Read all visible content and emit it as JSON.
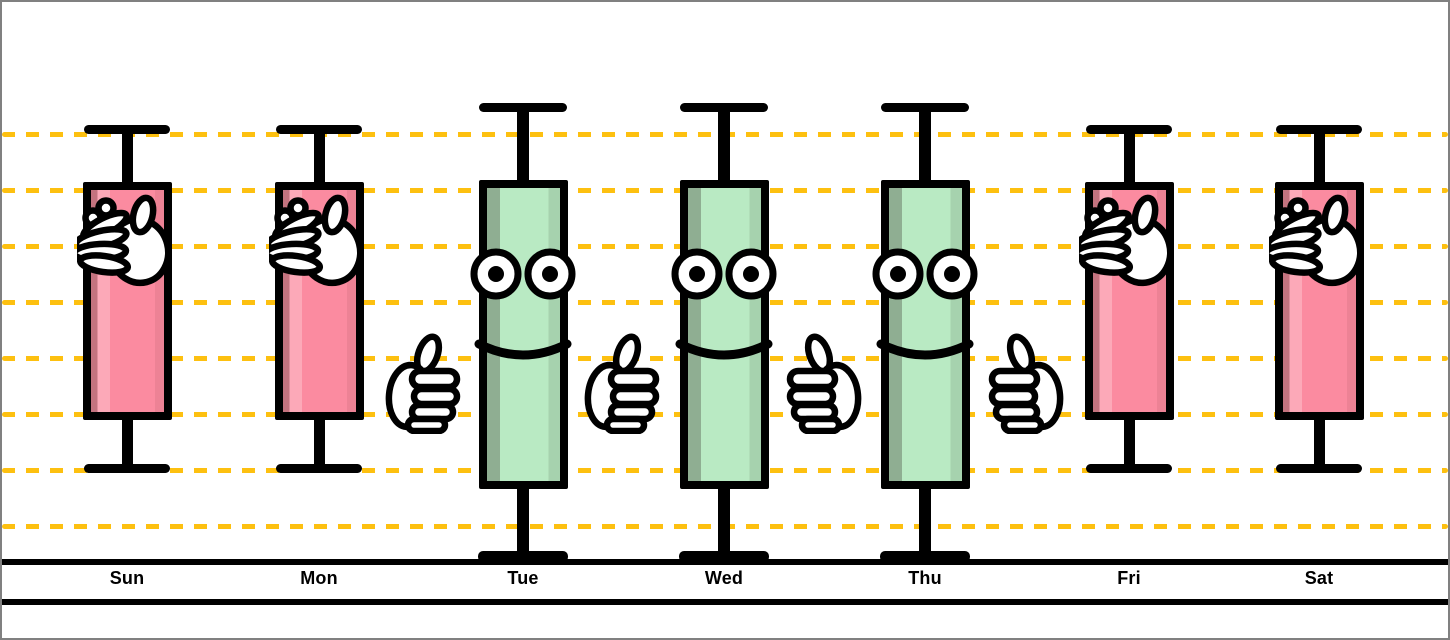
{
  "chart": {
    "colors": {
      "background": "#ffffff",
      "frame_border": "#808080",
      "gridline": "#FDC010",
      "outline": "#000000",
      "hand_fill": "#ffffff",
      "bearish": {
        "main": "#FB8BA0",
        "highlight": "#FCA9B8",
        "shadow_left": "#C4737F",
        "shadow_right": "#ED8295"
      },
      "bullish": {
        "main": "#B9EAC3",
        "highlight": "#C9F2D2",
        "shadow_left": "#8FAE92",
        "shadow_right": "#A6D2AE"
      }
    }
  },
  "chart_data": {
    "type": "candlestick",
    "title": "",
    "subtitle": "",
    "legend": "none",
    "categories": [
      "Sun",
      "Mon",
      "Tue",
      "Wed",
      "Thu",
      "Fri",
      "Sat"
    ],
    "x_axis": {
      "labels": [
        "Sun",
        "Mon",
        "Tue",
        "Wed",
        "Thu",
        "Fri",
        "Sat"
      ]
    },
    "y_axis": {
      "tick_labels": "none",
      "gridlines": 8,
      "gridline_style": "dashed"
    },
    "candles": [
      {
        "day": "Sun",
        "direction": "down",
        "color": "red",
        "face": "facepalm-hand",
        "high": 1.0,
        "open": 1.9,
        "close": 5.0,
        "low": 6.0
      },
      {
        "day": "Mon",
        "direction": "down",
        "color": "red",
        "face": "facepalm-hand",
        "high": 1.0,
        "open": 1.9,
        "close": 5.0,
        "low": 6.0
      },
      {
        "day": "Tue",
        "direction": "up",
        "color": "green",
        "face": "smiley-eyes-and-smile",
        "high": 0.45,
        "open": 6.35,
        "close": 1.85,
        "low": 7.55
      },
      {
        "day": "Wed",
        "direction": "up",
        "color": "green",
        "face": "smiley-eyes-and-smile",
        "high": 0.45,
        "open": 6.35,
        "close": 1.85,
        "low": 7.55
      },
      {
        "day": "Thu",
        "direction": "up",
        "color": "green",
        "face": "smiley-eyes-and-smile",
        "high": 0.45,
        "open": 6.35,
        "close": 1.85,
        "low": 7.55
      },
      {
        "day": "Fri",
        "direction": "down",
        "color": "red",
        "face": "facepalm-hand",
        "high": 1.0,
        "open": 1.9,
        "close": 5.0,
        "low": 6.0
      },
      {
        "day": "Sat",
        "direction": "down",
        "color": "red",
        "face": "facepalm-hand",
        "high": 1.0,
        "open": 1.9,
        "close": 5.0,
        "low": 6.0
      }
    ],
    "value_units": "gridline index from top (no numeric axis shown)",
    "annotations": [
      {
        "between": [
          "Mon",
          "Tue"
        ],
        "icon": "thumbs-up-icon",
        "facing": "right"
      },
      {
        "between": [
          "Tue",
          "Wed"
        ],
        "icon": "thumbs-up-icon",
        "facing": "right"
      },
      {
        "between": [
          "Wed",
          "Thu"
        ],
        "icon": "thumbs-up-icon",
        "facing": "left"
      },
      {
        "between": [
          "Thu",
          "Fri"
        ],
        "icon": "thumbs-up-icon",
        "facing": "left"
      }
    ]
  }
}
